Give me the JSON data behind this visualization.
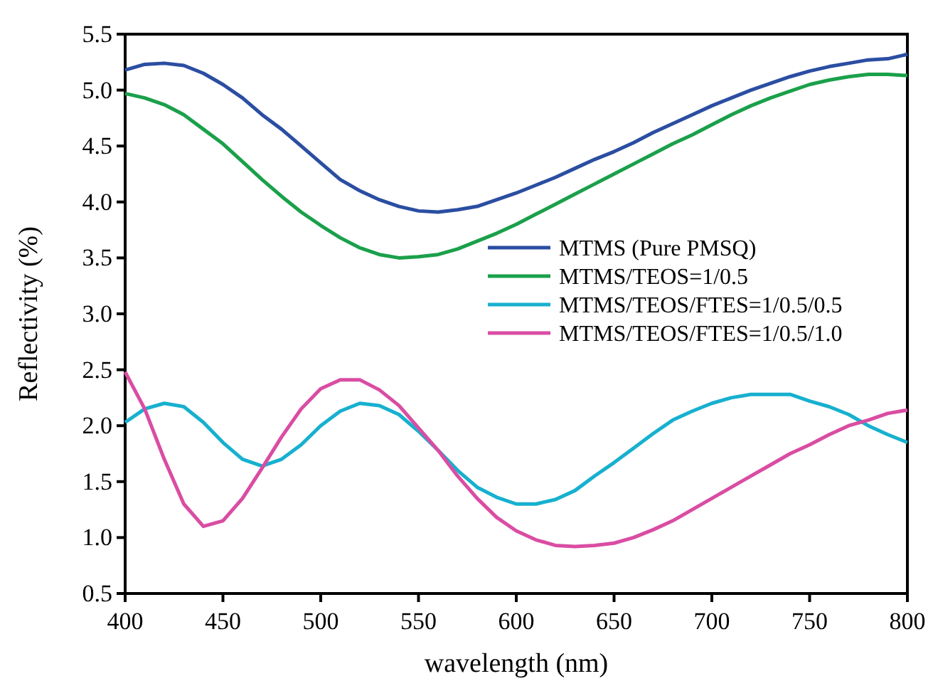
{
  "chart_data": {
    "type": "line",
    "xlabel": "wavelength (nm)",
    "ylabel": "Reflectivity (%)",
    "x": [
      400,
      410,
      420,
      430,
      440,
      450,
      460,
      470,
      480,
      490,
      500,
      510,
      520,
      530,
      540,
      550,
      560,
      570,
      580,
      590,
      600,
      610,
      620,
      630,
      640,
      650,
      660,
      670,
      680,
      690,
      700,
      710,
      720,
      730,
      740,
      750,
      760,
      770,
      780,
      790,
      800
    ],
    "series": [
      {
        "name": "MTMS (Pure PMSQ)",
        "color": "#2b4ea2",
        "values": [
          5.18,
          5.23,
          5.24,
          5.22,
          5.15,
          5.05,
          4.93,
          4.78,
          4.65,
          4.5,
          4.35,
          4.2,
          4.1,
          4.02,
          3.96,
          3.92,
          3.91,
          3.93,
          3.96,
          4.02,
          4.08,
          4.15,
          4.22,
          4.3,
          4.38,
          4.45,
          4.53,
          4.62,
          4.7,
          4.78,
          4.86,
          4.93,
          5.0,
          5.06,
          5.12,
          5.17,
          5.21,
          5.24,
          5.27,
          5.28,
          5.32
        ]
      },
      {
        "name": "MTMS/TEOS=1/0.5",
        "color": "#1aa04a",
        "values": [
          4.97,
          4.93,
          4.87,
          4.78,
          4.65,
          4.52,
          4.36,
          4.2,
          4.05,
          3.91,
          3.79,
          3.68,
          3.59,
          3.53,
          3.5,
          3.51,
          3.53,
          3.58,
          3.65,
          3.72,
          3.8,
          3.89,
          3.98,
          4.07,
          4.16,
          4.25,
          4.34,
          4.43,
          4.52,
          4.6,
          4.69,
          4.78,
          4.86,
          4.93,
          4.99,
          5.05,
          5.09,
          5.12,
          5.14,
          5.14,
          5.13
        ]
      },
      {
        "name": "MTMS/TEOS/FTES=1/0.5/0.5",
        "color": "#17b0cf",
        "values": [
          2.03,
          2.15,
          2.2,
          2.17,
          2.03,
          1.85,
          1.7,
          1.64,
          1.7,
          1.83,
          2.0,
          2.13,
          2.2,
          2.18,
          2.1,
          1.95,
          1.78,
          1.6,
          1.45,
          1.36,
          1.3,
          1.3,
          1.34,
          1.42,
          1.55,
          1.67,
          1.8,
          1.93,
          2.05,
          2.13,
          2.2,
          2.25,
          2.28,
          2.28,
          2.28,
          2.22,
          2.17,
          2.1,
          2.0,
          1.92,
          1.85
        ]
      },
      {
        "name": "MTMS/TEOS/FTES=1/0.5/1.0",
        "color": "#d94da3",
        "values": [
          2.48,
          2.15,
          1.7,
          1.3,
          1.1,
          1.15,
          1.35,
          1.62,
          1.9,
          2.15,
          2.33,
          2.41,
          2.41,
          2.32,
          2.18,
          1.98,
          1.78,
          1.55,
          1.35,
          1.18,
          1.06,
          0.98,
          0.93,
          0.92,
          0.93,
          0.95,
          1.0,
          1.07,
          1.15,
          1.25,
          1.35,
          1.45,
          1.55,
          1.65,
          1.75,
          1.83,
          1.92,
          2.0,
          2.05,
          2.11,
          2.14
        ]
      }
    ],
    "xlim": [
      400,
      800
    ],
    "xticks": [
      400,
      450,
      500,
      550,
      600,
      650,
      700,
      750,
      800
    ],
    "ylim": [
      0.5,
      5.5
    ],
    "yticks": [
      0.5,
      {
        "value": 1,
        "label": "1.0"
      },
      1.5,
      {
        "value": 2,
        "label": "2.0"
      },
      2.5,
      {
        "value": 3,
        "label": "3.0"
      },
      3.5,
      {
        "value": 4,
        "label": "4.0"
      },
      4.5,
      {
        "value": 5,
        "label": "5.0"
      },
      5.5
    ],
    "legend": "right",
    "grid": false,
    "marker": "none",
    "line_style": "solid"
  }
}
